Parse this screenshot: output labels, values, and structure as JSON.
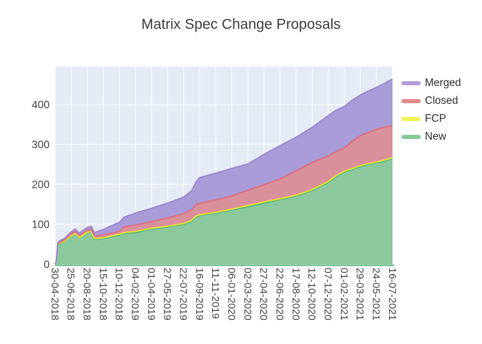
{
  "title": "Matrix Spec Change Proposals",
  "chart_data": {
    "type": "area",
    "stacked": true,
    "title": "Matrix Spec Change Proposals",
    "xlabel": "",
    "ylabel": "",
    "ylim": [
      0,
      495
    ],
    "yticks": [
      0,
      100,
      200,
      300,
      400
    ],
    "grid": true,
    "plot_background": "#e5ebf5",
    "grid_color": "#ffffff",
    "tick_label_color": "#444444",
    "legend_position": "right-top",
    "legend_order_top_down": [
      "Merged",
      "Closed",
      "FCP",
      "New"
    ],
    "stack_order_bottom_up": [
      "New",
      "FCP",
      "Closed",
      "Merged"
    ],
    "xtick_labels": [
      "30-04-2018",
      "25-06-2018",
      "20-08-2018",
      "15-10-2018",
      "10-12-2018",
      "04-02-2019",
      "01-04-2019",
      "27-05-2019",
      "22-07-2019",
      "16-09-2019",
      "11-11-2019",
      "06-01-2020",
      "02-03-2020",
      "27-04-2020",
      "22-06-2020",
      "17-08-2020",
      "12-10-2020",
      "07-12-2020",
      "01-02-2021",
      "29-03-2021",
      "24-05-2021",
      "16-07-2021"
    ],
    "series_styles": [
      {
        "name": "Merged",
        "line": "#9b87cf",
        "fill": "#a99bd8",
        "legend_swatch": "#b49ddb"
      },
      {
        "name": "Closed",
        "line": "#db6f80",
        "fill": "#d9909b",
        "legend_swatch": "#e2898e"
      },
      {
        "name": "FCP",
        "line": "#e6e03a",
        "fill": "#f1ec60",
        "legend_swatch": "#f6f356"
      },
      {
        "name": "New",
        "line": "#52b373",
        "fill": "#8bc89d",
        "legend_swatch": "#84c897"
      }
    ],
    "samples": [
      {
        "date": "30-04-2018",
        "pos": 0,
        "new": 0,
        "fcp": 0,
        "closed": 0,
        "merged": 0
      },
      {
        "date": "04-05-2018",
        "pos": 0.07,
        "new": 5,
        "fcp": 0,
        "closed": 1,
        "merged": 1
      },
      {
        "date": "10-05-2018",
        "pos": 0.18,
        "new": 48,
        "fcp": 1,
        "closed": 2,
        "merged": 3
      },
      {
        "date": "17-05-2018",
        "pos": 0.3,
        "new": 52,
        "fcp": 1,
        "closed": 2,
        "merged": 4
      },
      {
        "date": "01-06-2018",
        "pos": 0.57,
        "new": 56,
        "fcp": 1,
        "closed": 3,
        "merged": 4
      },
      {
        "date": "25-06-2018",
        "pos": 1,
        "new": 70,
        "fcp": 1,
        "closed": 5,
        "merged": 5
      },
      {
        "date": "09-07-2018",
        "pos": 1.25,
        "new": 76,
        "fcp": 1,
        "closed": 5,
        "merged": 6
      },
      {
        "date": "23-07-2018",
        "pos": 1.5,
        "new": 66,
        "fcp": 1,
        "closed": 5,
        "merged": 6
      },
      {
        "date": "06-08-2018",
        "pos": 1.75,
        "new": 72,
        "fcp": 1,
        "closed": 5,
        "merged": 7
      },
      {
        "date": "20-08-2018",
        "pos": 2,
        "new": 79,
        "fcp": 1,
        "closed": 5,
        "merged": 7
      },
      {
        "date": "03-09-2018",
        "pos": 2.25,
        "new": 81,
        "fcp": 1,
        "closed": 5,
        "merged": 8
      },
      {
        "date": "14-09-2018",
        "pos": 2.45,
        "new": 62,
        "fcp": 2,
        "closed": 7,
        "merged": 8
      },
      {
        "date": "15-10-2018",
        "pos": 3,
        "new": 64,
        "fcp": 2,
        "closed": 7,
        "merged": 14
      },
      {
        "date": "10-12-2018",
        "pos": 4,
        "new": 73,
        "fcp": 2,
        "closed": 7,
        "merged": 23
      },
      {
        "date": "27-12-2018",
        "pos": 4.3,
        "new": 77,
        "fcp": 2,
        "closed": 15,
        "merged": 24
      },
      {
        "date": "04-02-2019",
        "pos": 5,
        "new": 79,
        "fcp": 3,
        "closed": 16,
        "merged": 30
      },
      {
        "date": "01-04-2019",
        "pos": 6,
        "new": 88,
        "fcp": 2,
        "closed": 17,
        "merged": 33
      },
      {
        "date": "27-05-2019",
        "pos": 7,
        "new": 93,
        "fcp": 2,
        "closed": 21,
        "merged": 37
      },
      {
        "date": "22-07-2019",
        "pos": 8,
        "new": 100,
        "fcp": 2,
        "closed": 24,
        "merged": 42
      },
      {
        "date": "19-08-2019",
        "pos": 8.5,
        "new": 108,
        "fcp": 2,
        "closed": 26,
        "merged": 48
      },
      {
        "date": "02-09-2019",
        "pos": 8.75,
        "new": 118,
        "fcp": 2,
        "closed": 28,
        "merged": 57
      },
      {
        "date": "16-09-2019",
        "pos": 9,
        "new": 122,
        "fcp": 2,
        "closed": 29,
        "merged": 64
      },
      {
        "date": "11-11-2019",
        "pos": 10,
        "new": 128,
        "fcp": 2,
        "closed": 31,
        "merged": 67
      },
      {
        "date": "06-01-2020",
        "pos": 11,
        "new": 136,
        "fcp": 2,
        "closed": 33,
        "merged": 69
      },
      {
        "date": "02-03-2020",
        "pos": 12,
        "new": 144,
        "fcp": 3,
        "closed": 38,
        "merged": 66
      },
      {
        "date": "27-04-2020",
        "pos": 13,
        "new": 153,
        "fcp": 3,
        "closed": 43,
        "merged": 76
      },
      {
        "date": "22-06-2020",
        "pos": 14,
        "new": 162,
        "fcp": 2,
        "closed": 50,
        "merged": 83
      },
      {
        "date": "17-08-2020",
        "pos": 15,
        "new": 171,
        "fcp": 2,
        "closed": 61,
        "merged": 84
      },
      {
        "date": "12-10-2020",
        "pos": 16,
        "new": 185,
        "fcp": 2,
        "closed": 68,
        "merged": 88
      },
      {
        "date": "07-12-2020",
        "pos": 17,
        "new": 205,
        "fcp": 2,
        "closed": 64,
        "merged": 101
      },
      {
        "date": "04-01-2021",
        "pos": 17.5,
        "new": 220,
        "fcp": 2,
        "closed": 60,
        "merged": 104
      },
      {
        "date": "01-02-2021",
        "pos": 18,
        "new": 231,
        "fcp": 2,
        "closed": 58,
        "merged": 104
      },
      {
        "date": "01-03-2021",
        "pos": 18.5,
        "new": 238,
        "fcp": 2,
        "closed": 68,
        "merged": 103
      },
      {
        "date": "29-03-2021",
        "pos": 19,
        "new": 245,
        "fcp": 2,
        "closed": 75,
        "merged": 102
      },
      {
        "date": "26-04-2021",
        "pos": 19.5,
        "new": 250,
        "fcp": 2,
        "closed": 78,
        "merged": 104
      },
      {
        "date": "24-05-2021",
        "pos": 20,
        "new": 254,
        "fcp": 2,
        "closed": 82,
        "merged": 105
      },
      {
        "date": "21-06-2021",
        "pos": 20.5,
        "new": 259,
        "fcp": 2,
        "closed": 82,
        "merged": 110
      },
      {
        "date": "16-07-2021",
        "pos": 21,
        "new": 265,
        "fcp": 2,
        "closed": 81,
        "merged": 116
      }
    ]
  }
}
